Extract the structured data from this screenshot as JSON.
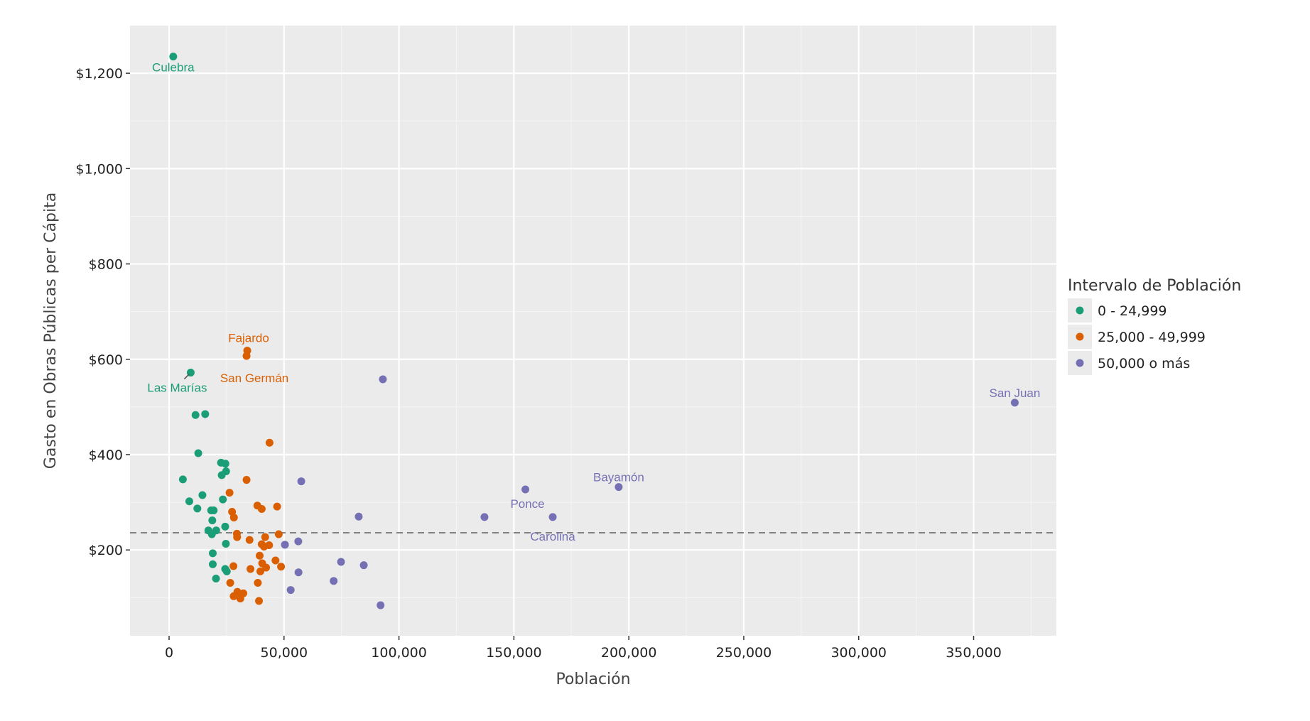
{
  "chart_data": {
    "type": "scatter",
    "title": "",
    "xlabel": "Población",
    "ylabel": "Gasto en Obras Públicas per Cápita",
    "xlim": [
      -17000,
      386000
    ],
    "ylim": [
      20,
      1300
    ],
    "x_ticks": [
      0,
      50000,
      100000,
      150000,
      200000,
      250000,
      300000,
      350000
    ],
    "x_tick_labels": [
      "0",
      "50,000",
      "100,000",
      "150,000",
      "200,000",
      "250,000",
      "300,000",
      "350,000"
    ],
    "y_ticks": [
      200,
      400,
      600,
      800,
      1000,
      1200
    ],
    "y_tick_labels": [
      "$200",
      "$400",
      "$600",
      "$800",
      "$1,000",
      "$1,200"
    ],
    "grid": true,
    "reference_line": {
      "y": 236,
      "style": "dashed",
      "color": "#808080"
    },
    "legend": {
      "title": "Intervalo de Población",
      "placement": "right",
      "entries": [
        "0 - 24,999",
        "25,000 - 49,999",
        "50,000 o más"
      ]
    },
    "series": [
      {
        "name": "0 - 24,999",
        "color": "#1b9e77",
        "points": [
          [
            1800,
            1235
          ],
          [
            9400,
            572
          ],
          [
            11500,
            483
          ],
          [
            15700,
            485
          ],
          [
            12700,
            403
          ],
          [
            22600,
            383
          ],
          [
            24500,
            381
          ],
          [
            24800,
            365
          ],
          [
            22900,
            357
          ],
          [
            6000,
            348
          ],
          [
            14500,
            315
          ],
          [
            8800,
            302
          ],
          [
            12300,
            287
          ],
          [
            23400,
            306
          ],
          [
            18300,
            283
          ],
          [
            19400,
            283
          ],
          [
            18800,
            262
          ],
          [
            24400,
            249
          ],
          [
            20500,
            241
          ],
          [
            17100,
            241
          ],
          [
            18600,
            233
          ],
          [
            24700,
            213
          ],
          [
            19000,
            193
          ],
          [
            19000,
            170
          ],
          [
            24400,
            160
          ],
          [
            25100,
            155
          ],
          [
            20400,
            140
          ]
        ]
      },
      {
        "name": "25,000 - 49,999",
        "color": "#d95f02",
        "points": [
          [
            34000,
            618
          ],
          [
            33700,
            607
          ],
          [
            43700,
            425
          ],
          [
            33700,
            347
          ],
          [
            26300,
            320
          ],
          [
            27400,
            280
          ],
          [
            28200,
            268
          ],
          [
            38400,
            293
          ],
          [
            40300,
            286
          ],
          [
            47000,
            291
          ],
          [
            29500,
            234
          ],
          [
            29600,
            227
          ],
          [
            35000,
            221
          ],
          [
            41800,
            227
          ],
          [
            47700,
            233
          ],
          [
            40300,
            212
          ],
          [
            43500,
            210
          ],
          [
            41300,
            207
          ],
          [
            39400,
            188
          ],
          [
            46300,
            178
          ],
          [
            40500,
            172
          ],
          [
            48700,
            165
          ],
          [
            42200,
            163
          ],
          [
            35400,
            160
          ],
          [
            28000,
            166
          ],
          [
            39700,
            155
          ],
          [
            26600,
            131
          ],
          [
            38600,
            131
          ],
          [
            29700,
            112
          ],
          [
            32300,
            109
          ],
          [
            28100,
            103
          ],
          [
            31000,
            98
          ],
          [
            39100,
            93
          ]
        ]
      },
      {
        "name": "50,000 o más",
        "color": "#7570b3",
        "points": [
          [
            93000,
            558
          ],
          [
            367900,
            509
          ],
          [
            57500,
            344
          ],
          [
            155000,
            327
          ],
          [
            195600,
            332
          ],
          [
            137200,
            269
          ],
          [
            166900,
            269
          ],
          [
            82500,
            270
          ],
          [
            56200,
            218
          ],
          [
            50400,
            211
          ],
          [
            74800,
            175
          ],
          [
            84700,
            168
          ],
          [
            56300,
            153
          ],
          [
            71600,
            135
          ],
          [
            52900,
            116
          ],
          [
            92000,
            84
          ]
        ]
      }
    ],
    "labels": [
      {
        "text": "Culebra",
        "x": 1800,
        "y": 1235,
        "series": 0
      },
      {
        "text": "Las Marías",
        "x": 9400,
        "y": 572,
        "series": 0
      },
      {
        "text": "Fajardo",
        "x": 34000,
        "y": 618,
        "series": 1
      },
      {
        "text": "San Germán",
        "x": 33700,
        "y": 607,
        "series": 1
      },
      {
        "text": "San Juan",
        "x": 367900,
        "y": 509,
        "series": 2
      },
      {
        "text": "Bayamón",
        "x": 195600,
        "y": 332,
        "series": 2
      },
      {
        "text": "Ponce",
        "x": 155000,
        "y": 327,
        "series": 2
      },
      {
        "text": "Carolina",
        "x": 166900,
        "y": 269,
        "series": 2
      }
    ]
  }
}
